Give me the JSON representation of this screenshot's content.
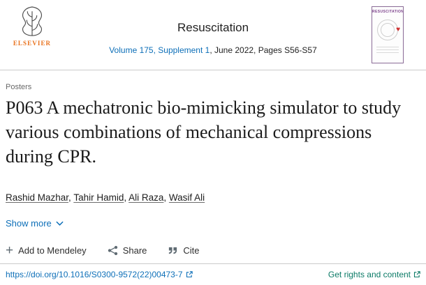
{
  "header": {
    "publisher": "ELSEVIER",
    "journal_title": "Resuscitation",
    "volume_link": "Volume 175, Supplement 1",
    "issue_info": ", June 2022, Pages S56-S57",
    "cover_title": "RESUSCITATION"
  },
  "article": {
    "section_label": "Posters",
    "title": "P063 A mechatronic bio-mimicking simulator to study various combinations of mechanical compressions during CPR.",
    "authors": [
      "Rashid Mazhar",
      "Tahir Hamid",
      "Ali Raza",
      "Wasif Ali"
    ],
    "show_more_label": "Show more"
  },
  "actions": {
    "mendeley_label": "Add to Mendeley",
    "share_label": "Share",
    "cite_label": "Cite"
  },
  "footer": {
    "doi_link": "https://doi.org/10.1016/S0300-9572(22)00473-7",
    "rights_link": "Get rights and content"
  },
  "colors": {
    "link_blue": "#0d6fb8",
    "rights_teal": "#0b7a66",
    "elsevier_orange": "#e9711c",
    "cover_purple": "#7b3f8a",
    "heart_red": "#cf2e2e",
    "title_dark": "#1a1a1a",
    "text_gray": "#686868",
    "icon_gray": "#5f6b73",
    "divider_gray": "#cbcbcb"
  }
}
